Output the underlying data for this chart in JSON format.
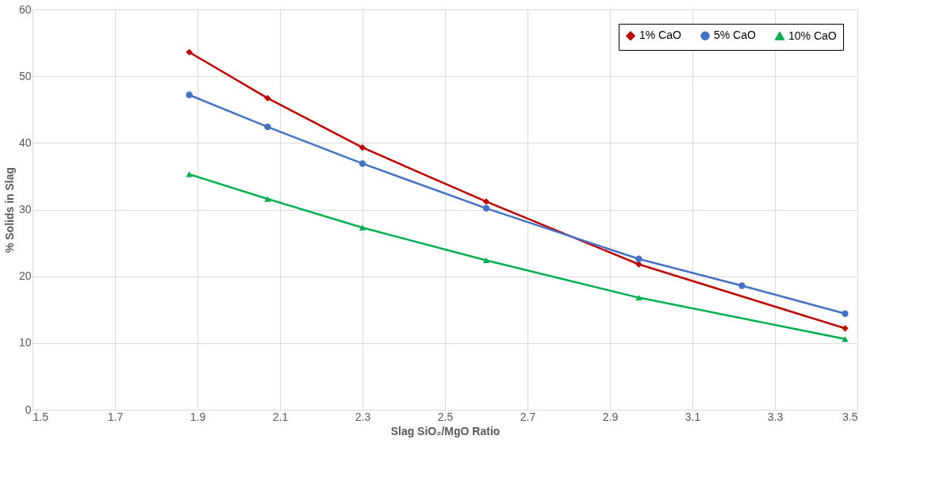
{
  "chart_data": {
    "type": "line",
    "xlabel": "Slag SiO₂/MgO Ratio",
    "ylabel": "% Solids in Slag",
    "xlim": [
      1.5,
      3.5
    ],
    "xticks": [
      1.5,
      1.7,
      1.9,
      2.1,
      2.3,
      2.5,
      2.7,
      2.9,
      3.1,
      3.3,
      3.5
    ],
    "ylim": [
      0,
      60
    ],
    "yticks": [
      0,
      10,
      20,
      30,
      40,
      50,
      60
    ],
    "grid": true,
    "legend": "top right",
    "line_style": "solid",
    "series": [
      {
        "name": "1% CaO",
        "color": "#c00000",
        "marker": "diamond",
        "x": [
          1.88,
          2.07,
          2.3,
          2.6,
          2.97,
          3.47
        ],
        "values": [
          53.6,
          46.7,
          39.3,
          31.2,
          21.8,
          12.2
        ]
      },
      {
        "name": "5% CaO",
        "color": "#4472c4",
        "marker": "circle",
        "x": [
          1.88,
          2.07,
          2.3,
          2.6,
          2.97,
          3.22,
          3.47
        ],
        "values": [
          47.2,
          42.4,
          36.9,
          30.2,
          22.6,
          18.6,
          14.4
        ]
      },
      {
        "name": "10% CaO",
        "color": "#00b050",
        "marker": "triangle",
        "x": [
          1.88,
          2.07,
          2.3,
          2.6,
          2.97,
          3.47
        ],
        "values": [
          35.3,
          31.6,
          27.3,
          22.4,
          16.8,
          10.6
        ]
      }
    ]
  }
}
